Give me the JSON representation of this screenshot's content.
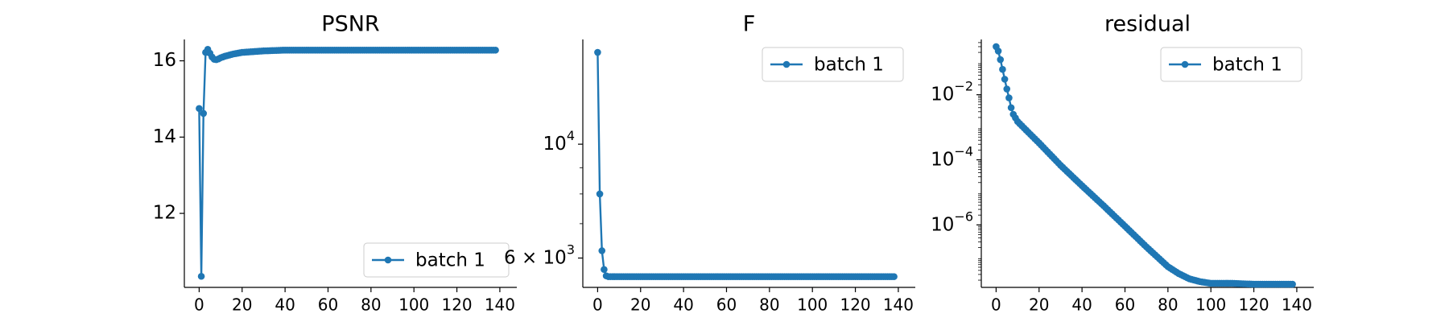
{
  "chart_data": [
    {
      "type": "line",
      "title": "PSNR",
      "xlabel": "",
      "ylabel": "",
      "xlim": [
        -6.9,
        147.9
      ],
      "ylim": [
        10.06,
        16.56
      ],
      "xticks": [
        0,
        20,
        40,
        60,
        80,
        100,
        120,
        140
      ],
      "yticks": [
        12,
        14,
        16
      ],
      "ytick_labels": [
        "12",
        "14",
        "16"
      ],
      "yscale": "linear",
      "grid": false,
      "legend_position": "lower right",
      "series": [
        {
          "name": "batch 1",
          "color": "#1f77b4",
          "x": [
            0,
            1,
            2,
            3,
            4,
            5,
            6,
            7,
            8,
            9,
            10,
            12,
            14,
            16,
            18,
            20,
            25,
            30,
            35,
            40,
            50,
            60,
            70,
            80,
            90,
            100,
            110,
            120,
            130,
            138
          ],
          "y": [
            14.75,
            10.35,
            14.62,
            16.22,
            16.3,
            16.2,
            16.1,
            16.04,
            16.03,
            16.05,
            16.08,
            16.12,
            16.15,
            16.18,
            16.2,
            16.22,
            16.24,
            16.26,
            16.27,
            16.28,
            16.28,
            16.28,
            16.28,
            16.28,
            16.28,
            16.28,
            16.28,
            16.28,
            16.28,
            16.28
          ]
        }
      ]
    },
    {
      "type": "line",
      "title": "F",
      "xlabel": "",
      "ylabel": "",
      "xlim": [
        -6.9,
        147.9
      ],
      "ylim": [
        5260,
        16000
      ],
      "xticks": [
        0,
        20,
        40,
        60,
        80,
        100,
        120,
        140
      ],
      "yticks": [
        10000,
        6000
      ],
      "ytick_labels": [
        "10^4",
        "6 × 10^3"
      ],
      "yscale": "log",
      "grid": false,
      "legend_position": "upper right",
      "series": [
        {
          "name": "batch 1",
          "color": "#1f77b4",
          "x": [
            0,
            1,
            2,
            3,
            4,
            5,
            6,
            7,
            8,
            10,
            15,
            20,
            30,
            40,
            60,
            80,
            100,
            120,
            138
          ],
          "y": [
            15100,
            8000,
            6200,
            5700,
            5540,
            5520,
            5520,
            5520,
            5520,
            5520,
            5520,
            5520,
            5520,
            5520,
            5520,
            5520,
            5520,
            5520,
            5520
          ]
        }
      ]
    },
    {
      "type": "line",
      "title": "residual",
      "xlabel": "",
      "ylabel": "",
      "xlim": [
        -6.9,
        147.9
      ],
      "ylim": [
        1.2e-08,
        0.5
      ],
      "xticks": [
        0,
        20,
        40,
        60,
        80,
        100,
        120,
        140
      ],
      "yticks": [
        0.01,
        0.0001,
        1e-06
      ],
      "ytick_labels": [
        "10^-2",
        "10^-4",
        "10^-6"
      ],
      "yscale": "log",
      "grid": false,
      "legend_position": "upper right",
      "series": [
        {
          "name": "batch 1",
          "color": "#1f77b4",
          "x": [
            0,
            1,
            2,
            3,
            4,
            5,
            6,
            7,
            8,
            10,
            15,
            20,
            30,
            40,
            50,
            60,
            70,
            80,
            85,
            90,
            95,
            100,
            110,
            120,
            130,
            138
          ],
          "y": [
            0.3,
            0.22,
            0.12,
            0.06,
            0.03,
            0.015,
            0.008,
            0.004,
            0.0025,
            0.0015,
            0.0007,
            0.00033,
            6.8e-05,
            1.6e-05,
            3.9e-06,
            9.1e-07,
            2.1e-07,
            5.2e-08,
            3.2e-08,
            2.2e-08,
            1.8e-08,
            1.6e-08,
            1.6e-08,
            1.5e-08,
            1.5e-08,
            1.5e-08
          ]
        }
      ]
    }
  ]
}
